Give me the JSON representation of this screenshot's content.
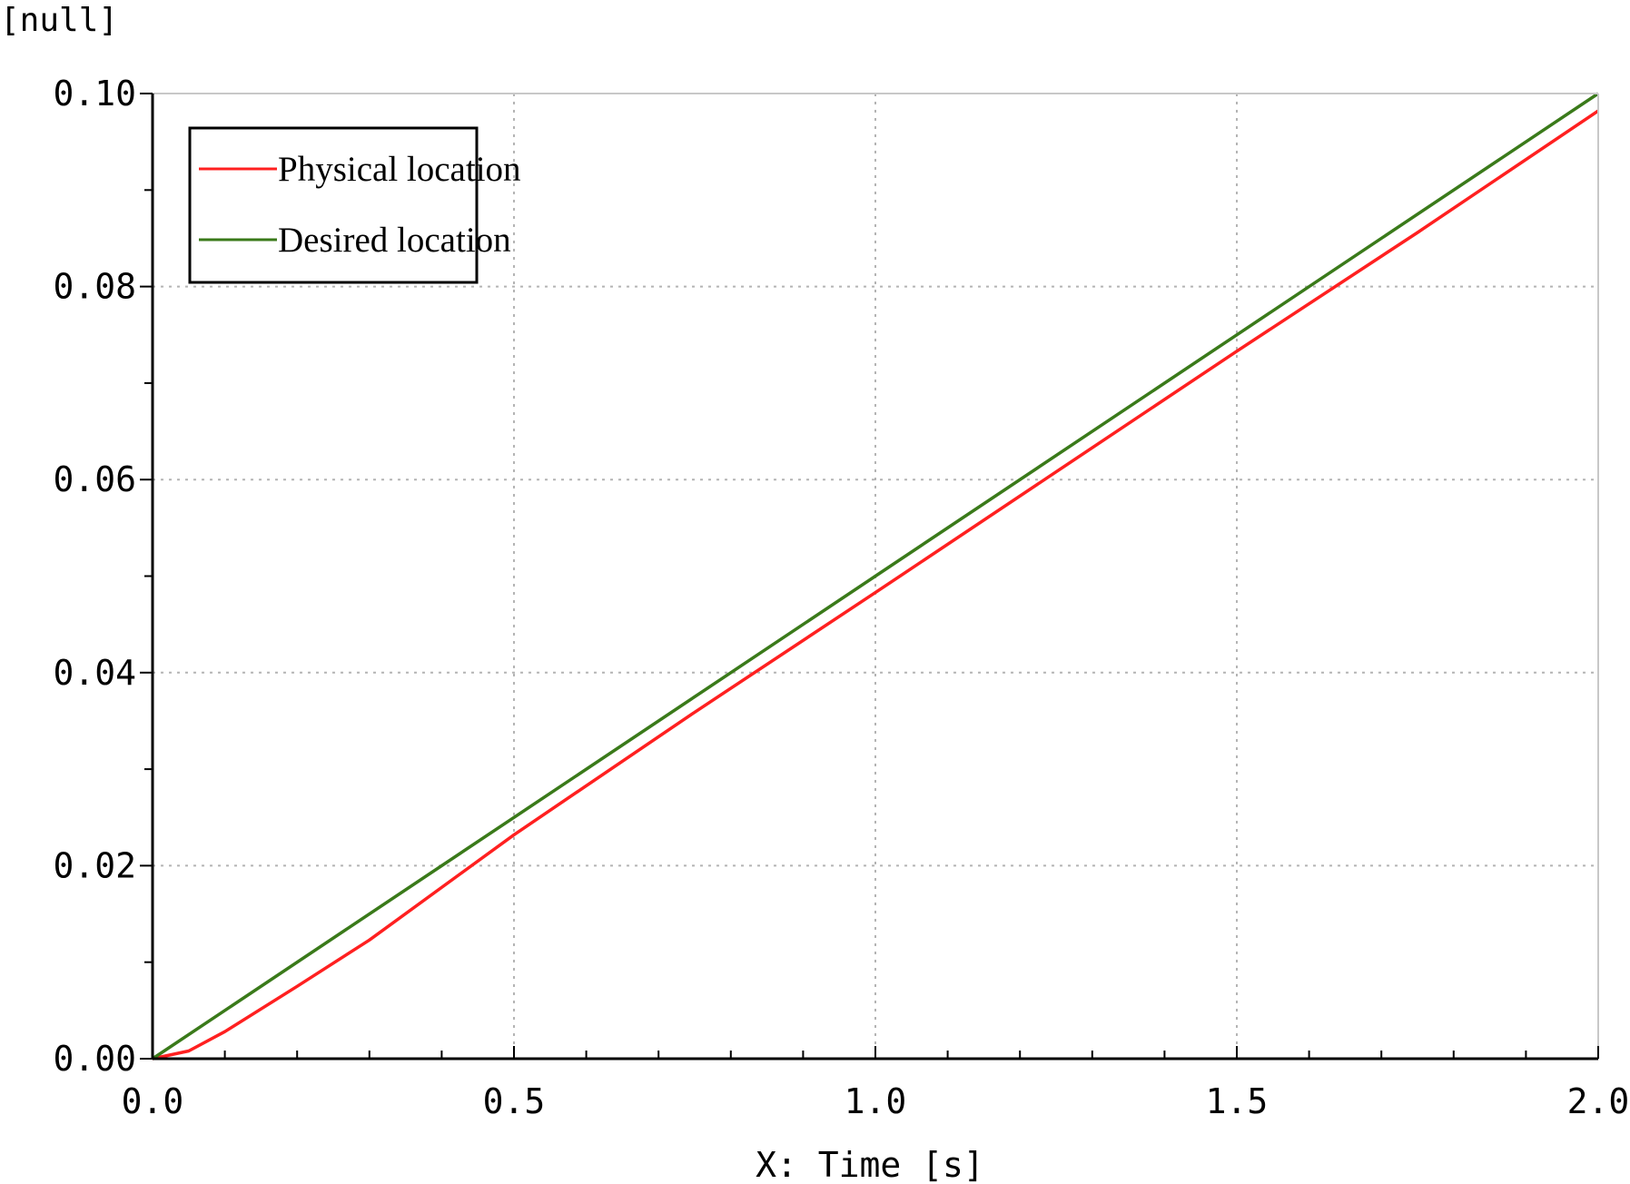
{
  "chart_data": {
    "type": "line",
    "ylabel": "[null]",
    "xlabel": "X: Time [s]",
    "xlim": [
      0.0,
      2.0
    ],
    "ylim": [
      0.0,
      0.1
    ],
    "x_ticks": [
      "0.0",
      "0.5",
      "1.0",
      "1.5",
      "2.0"
    ],
    "y_ticks": [
      "0.00",
      "0.02",
      "0.04",
      "0.06",
      "0.08",
      "0.10"
    ],
    "grid": true,
    "legend_position": "top-left",
    "series": [
      {
        "name": "Physical location",
        "color": "#ff2020",
        "x": [
          0.0,
          0.05,
          0.1,
          0.2,
          0.3,
          0.5,
          0.75,
          1.0,
          1.25,
          1.5,
          1.75,
          2.0
        ],
        "y": [
          0.0,
          0.0008,
          0.0028,
          0.0075,
          0.0123,
          0.0232,
          0.0359,
          0.0483,
          0.0608,
          0.0733,
          0.0856,
          0.0982
        ]
      },
      {
        "name": "Desired location",
        "color": "#3a7a1a",
        "x": [
          0.0,
          0.5,
          1.0,
          1.5,
          2.0
        ],
        "y": [
          0.0,
          0.025,
          0.05,
          0.075,
          0.1
        ]
      }
    ]
  }
}
